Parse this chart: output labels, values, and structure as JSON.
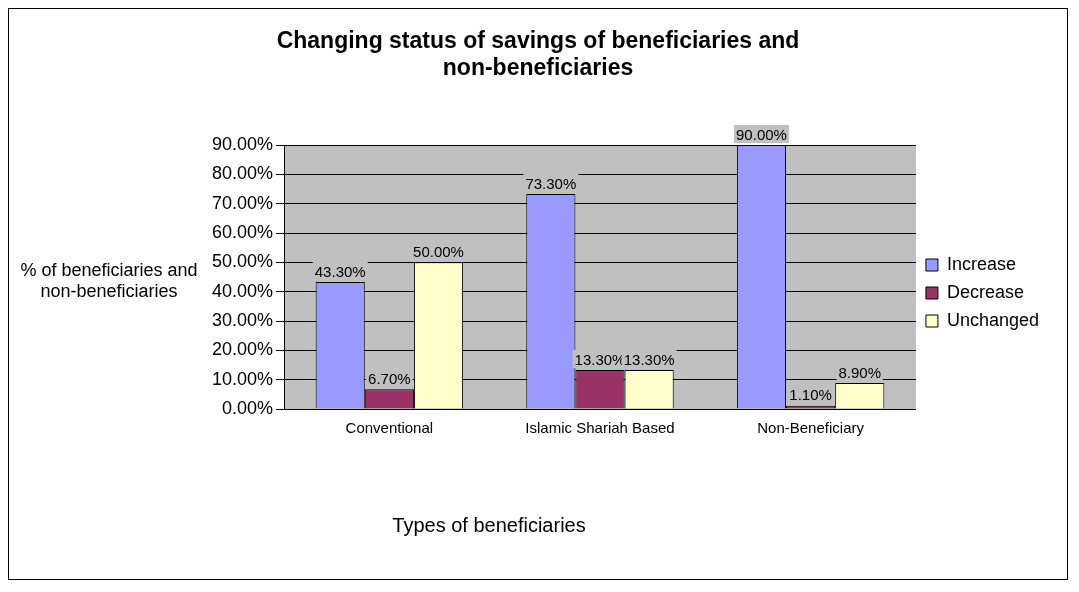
{
  "chart_data": {
    "type": "bar",
    "title": "Changing status of savings of beneficiaries and non-beneficiaries",
    "xlabel": "Types of beneficiaries",
    "ylabel": "% of beneficiaries and non-beneficiaries",
    "categories": [
      "Conventional",
      "Islamic Shariah Based",
      "Non-Beneficiary"
    ],
    "series": [
      {
        "name": "Increase",
        "color": "#9999ff",
        "values": [
          43.3,
          73.3,
          90.0
        ],
        "value_labels": [
          "43.30%",
          "73.30%",
          "90.00%"
        ]
      },
      {
        "name": "Decrease",
        "color": "#993366",
        "values": [
          6.7,
          13.3,
          1.1
        ],
        "value_labels": [
          "6.70%",
          "13.30%",
          "1.10%"
        ]
      },
      {
        "name": "Unchanged",
        "color": "#ffffcc",
        "values": [
          50.0,
          13.3,
          8.9
        ],
        "value_labels": [
          "50.00%",
          "13.30%",
          "8.90%"
        ]
      }
    ],
    "ylim": [
      0,
      90
    ],
    "yticks": [
      {
        "value": 0,
        "label": "0.00%"
      },
      {
        "value": 10,
        "label": "10.00%"
      },
      {
        "value": 20,
        "label": "20.00%"
      },
      {
        "value": 30,
        "label": "30.00%"
      },
      {
        "value": 40,
        "label": "40.00%"
      },
      {
        "value": 50,
        "label": "50.00%"
      },
      {
        "value": 60,
        "label": "60.00%"
      },
      {
        "value": 70,
        "label": "70.00%"
      },
      {
        "value": 80,
        "label": "80.00%"
      },
      {
        "value": 90,
        "label": "90.00%"
      }
    ],
    "grid": "y",
    "legend": "right"
  }
}
